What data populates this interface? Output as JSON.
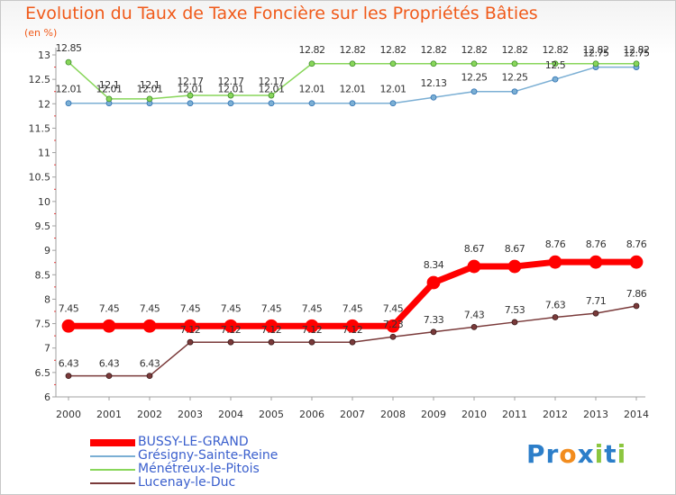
{
  "chart_data": {
    "type": "line",
    "title": "Evolution du Taux de Taxe Foncière sur les Propriétés Bâties",
    "ylabel": "(en %)",
    "xlabel": "",
    "ylim": [
      6,
      13
    ],
    "yticks": [
      "6",
      "6.5",
      "7",
      "7.5",
      "8",
      "8.5",
      "9",
      "9.5",
      "10",
      "10.5",
      "11",
      "11.5",
      "12",
      "12.5",
      "13"
    ],
    "categories": [
      "2000",
      "2001",
      "2002",
      "2003",
      "2004",
      "2005",
      "2006",
      "2007",
      "2008",
      "2009",
      "2010",
      "2011",
      "2012",
      "2013",
      "2014"
    ],
    "grid": false,
    "legend_position": "bottom-left",
    "series": [
      {
        "name": "BUSSY-LE-GRAND",
        "color": "#ff0000",
        "values": [
          7.45,
          7.45,
          7.45,
          7.45,
          7.45,
          7.45,
          7.45,
          7.45,
          7.45,
          8.34,
          8.67,
          8.67,
          8.76,
          8.76,
          8.76
        ],
        "labels": [
          "7.45",
          "7.45",
          "7.45",
          "7.45",
          "7.45",
          "7.45",
          "7.45",
          "7.45",
          "7.45",
          "8.34",
          "8.67",
          "8.67",
          "8.76",
          "8.76",
          "8.76"
        ]
      },
      {
        "name": "Grésigny-Sainte-Reine",
        "color": "#7bafd4",
        "values": [
          12.01,
          12.01,
          12.01,
          12.01,
          12.01,
          12.01,
          12.01,
          12.01,
          12.01,
          12.13,
          12.25,
          12.25,
          12.5,
          12.75,
          12.75
        ],
        "labels": [
          "12.01",
          "12.01",
          "12.01",
          "12.01",
          "12.01",
          "12.01",
          "12.01",
          "12.01",
          "12.01",
          "12.13",
          "12.25",
          "12.25",
          "12.5",
          "12.75",
          "12.75"
        ]
      },
      {
        "name": "Ménétreux-le-Pitois",
        "color": "#88d65a",
        "values": [
          12.85,
          12.1,
          12.1,
          12.17,
          12.17,
          12.17,
          12.82,
          12.82,
          12.82,
          12.82,
          12.82,
          12.82,
          12.82,
          12.82,
          12.82
        ],
        "labels": [
          "12.85",
          "12.1",
          "12.1",
          "12.17",
          "12.17",
          "12.17",
          "12.82",
          "12.82",
          "12.82",
          "12.82",
          "12.82",
          "12.82",
          "12.82",
          "12.82",
          "12.82"
        ]
      },
      {
        "name": "Lucenay-le-Duc",
        "color": "#7a3a3a",
        "values": [
          6.43,
          6.43,
          6.43,
          7.12,
          7.12,
          7.12,
          7.12,
          7.12,
          7.23,
          7.33,
          7.43,
          7.53,
          7.63,
          7.71,
          7.86
        ],
        "labels": [
          "6.43",
          "6.43",
          "6.43",
          "7.12",
          "7.12",
          "7.12",
          "7.12",
          "7.12",
          "7.23",
          "7.33",
          "7.43",
          "7.53",
          "7.63",
          "7.71",
          "7.86"
        ]
      }
    ]
  },
  "branding": {
    "logo_letters": [
      "P",
      "r",
      "o",
      "x",
      "i",
      "t",
      "i"
    ],
    "logo_colors": [
      "#2c7ec9",
      "#2c7ec9",
      "#f28c1e",
      "#2c7ec9",
      "#8cc63f",
      "#2c7ec9",
      "#8cc63f"
    ]
  }
}
